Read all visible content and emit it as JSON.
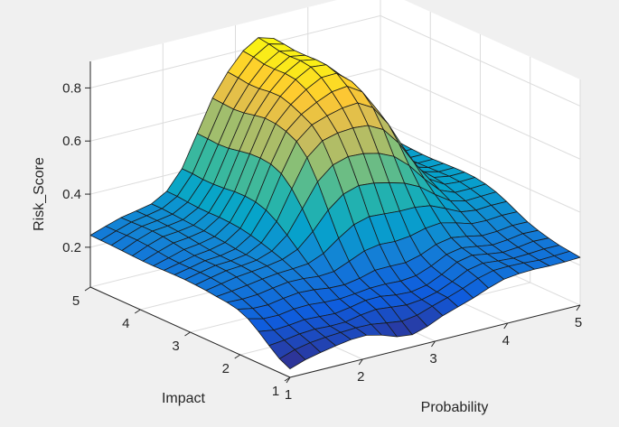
{
  "chart_data": {
    "type": "surface",
    "xlabel": "Probability",
    "ylabel": "Impact",
    "zlabel": "Risk_Score",
    "xlim": [
      1,
      5
    ],
    "ylim": [
      1,
      5
    ],
    "zlim": [
      0.05,
      0.9
    ],
    "x_ticks": [
      "1",
      "2",
      "3",
      "4",
      "5"
    ],
    "y_ticks": [
      "1",
      "2",
      "3",
      "4",
      "5"
    ],
    "z_ticks": [
      "0.2",
      "0.4",
      "0.6",
      "0.8"
    ],
    "z_tick_values": [
      0.2,
      0.4,
      0.6,
      0.8
    ],
    "grid": true,
    "colormap": "parula",
    "colormap_colors": [
      "#352a87",
      "#0f5cdd",
      "#1481d6",
      "#06a4ca",
      "#2eb7a4",
      "#87bf77",
      "#d1bb59",
      "#fec832",
      "#f9fb0e"
    ],
    "grid_x": [
      1.0,
      1.2105,
      1.4211,
      1.6316,
      1.8421,
      2.0526,
      2.2632,
      2.4737,
      2.6842,
      2.8947,
      3.1053,
      3.3158,
      3.5263,
      3.7368,
      3.9474,
      4.1579,
      4.3684,
      4.5789,
      4.7895,
      5.0
    ],
    "grid_y": [
      1.0,
      1.2105,
      1.4211,
      1.6316,
      1.8421,
      2.0526,
      2.2632,
      2.4737,
      2.6842,
      2.8947,
      3.1053,
      3.3158,
      3.5263,
      3.7368,
      3.9474,
      4.1579,
      4.3684,
      4.5789,
      4.7895,
      5.0
    ],
    "z_note_row_major_y_then_x": true,
    "z": [
      [
        0.082,
        0.102,
        0.115,
        0.126,
        0.135,
        0.137,
        0.123,
        0.103,
        0.096,
        0.113,
        0.139,
        0.158,
        0.177,
        0.2,
        0.219,
        0.226,
        0.228,
        0.226,
        0.227,
        0.23
      ],
      [
        0.102,
        0.122,
        0.134,
        0.14,
        0.144,
        0.147,
        0.146,
        0.137,
        0.129,
        0.137,
        0.157,
        0.175,
        0.195,
        0.219,
        0.234,
        0.236,
        0.234,
        0.23,
        0.232,
        0.235
      ],
      [
        0.134,
        0.14,
        0.149,
        0.153,
        0.15,
        0.151,
        0.163,
        0.17,
        0.164,
        0.158,
        0.164,
        0.178,
        0.203,
        0.232,
        0.244,
        0.238,
        0.234,
        0.236,
        0.24,
        0.24
      ],
      [
        0.169,
        0.16,
        0.164,
        0.171,
        0.168,
        0.165,
        0.174,
        0.186,
        0.187,
        0.178,
        0.175,
        0.186,
        0.212,
        0.244,
        0.256,
        0.246,
        0.238,
        0.243,
        0.251,
        0.249
      ],
      [
        0.199,
        0.185,
        0.184,
        0.193,
        0.195,
        0.19,
        0.188,
        0.193,
        0.2,
        0.201,
        0.198,
        0.204,
        0.226,
        0.255,
        0.266,
        0.257,
        0.248,
        0.253,
        0.262,
        0.26
      ],
      [
        0.217,
        0.206,
        0.205,
        0.215,
        0.222,
        0.219,
        0.211,
        0.209,
        0.219,
        0.235,
        0.236,
        0.235,
        0.25,
        0.275,
        0.286,
        0.277,
        0.265,
        0.267,
        0.275,
        0.274
      ],
      [
        0.225,
        0.223,
        0.226,
        0.236,
        0.244,
        0.243,
        0.237,
        0.241,
        0.265,
        0.29,
        0.3,
        0.297,
        0.303,
        0.318,
        0.324,
        0.31,
        0.292,
        0.29,
        0.295,
        0.294
      ],
      [
        0.229,
        0.235,
        0.243,
        0.252,
        0.259,
        0.262,
        0.267,
        0.291,
        0.334,
        0.371,
        0.387,
        0.383,
        0.379,
        0.379,
        0.371,
        0.346,
        0.319,
        0.311,
        0.315,
        0.315
      ],
      [
        0.234,
        0.245,
        0.256,
        0.262,
        0.269,
        0.279,
        0.303,
        0.356,
        0.422,
        0.468,
        0.486,
        0.481,
        0.468,
        0.452,
        0.424,
        0.381,
        0.343,
        0.328,
        0.331,
        0.333
      ],
      [
        0.237,
        0.25,
        0.262,
        0.266,
        0.273,
        0.293,
        0.339,
        0.424,
        0.511,
        0.56,
        0.577,
        0.574,
        0.561,
        0.535,
        0.486,
        0.421,
        0.365,
        0.342,
        0.342,
        0.345
      ],
      [
        0.239,
        0.252,
        0.264,
        0.267,
        0.276,
        0.306,
        0.372,
        0.481,
        0.584,
        0.633,
        0.648,
        0.653,
        0.648,
        0.618,
        0.553,
        0.466,
        0.389,
        0.355,
        0.35,
        0.352
      ],
      [
        0.239,
        0.251,
        0.264,
        0.268,
        0.28,
        0.317,
        0.397,
        0.52,
        0.627,
        0.675,
        0.695,
        0.71,
        0.715,
        0.683,
        0.607,
        0.504,
        0.409,
        0.363,
        0.353,
        0.354
      ],
      [
        0.238,
        0.251,
        0.265,
        0.272,
        0.286,
        0.325,
        0.41,
        0.538,
        0.647,
        0.697,
        0.728,
        0.753,
        0.76,
        0.724,
        0.64,
        0.528,
        0.42,
        0.366,
        0.352,
        0.353
      ],
      [
        0.237,
        0.253,
        0.27,
        0.277,
        0.29,
        0.329,
        0.414,
        0.543,
        0.658,
        0.716,
        0.758,
        0.789,
        0.791,
        0.745,
        0.655,
        0.537,
        0.425,
        0.366,
        0.35,
        0.351
      ],
      [
        0.237,
        0.258,
        0.277,
        0.283,
        0.294,
        0.331,
        0.413,
        0.541,
        0.661,
        0.729,
        0.778,
        0.811,
        0.805,
        0.75,
        0.656,
        0.538,
        0.425,
        0.366,
        0.349,
        0.349
      ],
      [
        0.239,
        0.263,
        0.283,
        0.288,
        0.297,
        0.33,
        0.408,
        0.534,
        0.654,
        0.728,
        0.783,
        0.817,
        0.807,
        0.747,
        0.651,
        0.535,
        0.424,
        0.366,
        0.349,
        0.349
      ],
      [
        0.241,
        0.266,
        0.286,
        0.291,
        0.3,
        0.331,
        0.405,
        0.526,
        0.645,
        0.722,
        0.781,
        0.815,
        0.805,
        0.743,
        0.647,
        0.532,
        0.424,
        0.367,
        0.351,
        0.351
      ],
      [
        0.243,
        0.266,
        0.286,
        0.293,
        0.303,
        0.334,
        0.405,
        0.523,
        0.641,
        0.721,
        0.782,
        0.817,
        0.805,
        0.743,
        0.646,
        0.533,
        0.426,
        0.37,
        0.354,
        0.354
      ],
      [
        0.244,
        0.265,
        0.284,
        0.294,
        0.306,
        0.338,
        0.409,
        0.526,
        0.644,
        0.727,
        0.791,
        0.826,
        0.811,
        0.746,
        0.648,
        0.535,
        0.429,
        0.373,
        0.357,
        0.357
      ],
      [
        0.245,
        0.265,
        0.283,
        0.294,
        0.306,
        0.339,
        0.41,
        0.528,
        0.647,
        0.731,
        0.796,
        0.832,
        0.815,
        0.748,
        0.649,
        0.536,
        0.43,
        0.374,
        0.358,
        0.358
      ]
    ]
  }
}
